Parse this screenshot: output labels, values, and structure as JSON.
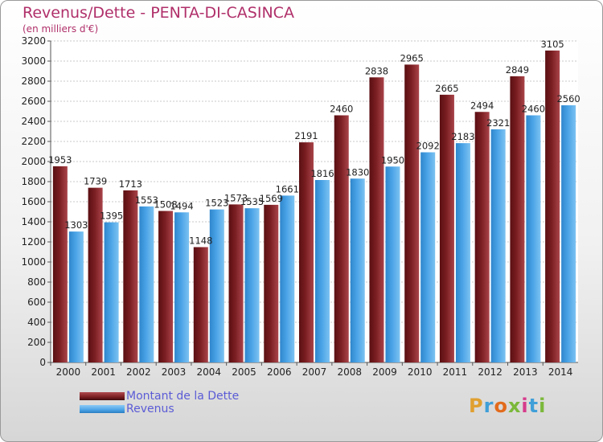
{
  "header": {
    "title": "Revenus/Dette - PENTA-DI-CASINCA",
    "subtitle": "(en milliers d'€)"
  },
  "legend": {
    "items": [
      {
        "label": "Montant de la Dette",
        "color": "#7a1e22"
      },
      {
        "label": "Revenus",
        "color": "#4aa3e6"
      }
    ]
  },
  "logo": {
    "text": "Proxiti"
  },
  "colors": {
    "debt": "#7a1e22",
    "revenue": "#4aa3e6"
  },
  "chart_data": {
    "type": "bar",
    "title": "Revenus/Dette - PENTA-DI-CASINCA",
    "subtitle": "(en milliers d'€)",
    "categories": [
      "2000",
      "2001",
      "2002",
      "2003",
      "2004",
      "2005",
      "2006",
      "2007",
      "2008",
      "2009",
      "2010",
      "2011",
      "2012",
      "2013",
      "2014"
    ],
    "series": [
      {
        "name": "Montant de la Dette",
        "values": [
          1953,
          1739,
          1713,
          1508,
          1148,
          1573,
          1569,
          2191,
          2460,
          2838,
          2965,
          2665,
          2494,
          2849,
          3105
        ]
      },
      {
        "name": "Revenus",
        "values": [
          1303,
          1395,
          1553,
          1494,
          1523,
          1535,
          1661,
          1816,
          1830,
          1950,
          2092,
          2183,
          2321,
          2460,
          2560
        ]
      }
    ],
    "ylim": [
      0,
      3200
    ],
    "yticks": [
      0,
      200,
      400,
      600,
      800,
      1000,
      1200,
      1400,
      1600,
      1800,
      2000,
      2200,
      2400,
      2600,
      2800,
      3000,
      3200
    ],
    "grid": true,
    "legend_position": "bottom-left"
  }
}
